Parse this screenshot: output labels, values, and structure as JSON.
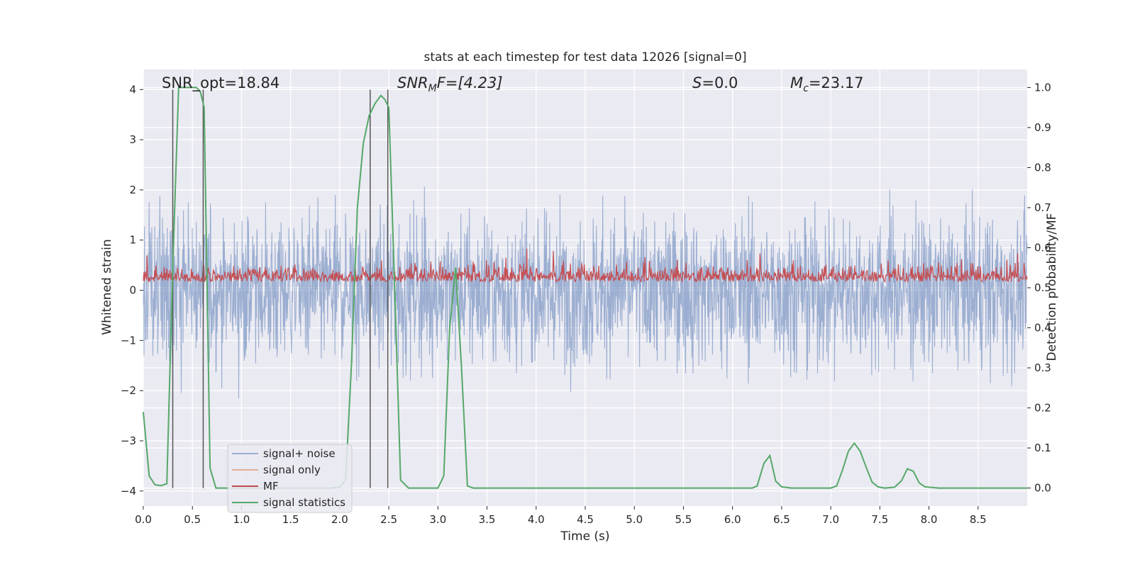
{
  "chart_data": {
    "type": "line",
    "title": "stats at each timestep for test data 12026 [signal=0]",
    "xlabel": "Time (s)",
    "ylabel_left": "Whitened strain",
    "ylabel_right": "Detection probability/MF",
    "xlim": [
      0,
      9.0
    ],
    "ylim_left": [
      -4.3,
      4.4
    ],
    "ylim_right": [
      -0.045,
      1.045
    ],
    "x_ticks": [
      0.0,
      0.5,
      1.0,
      1.5,
      2.0,
      2.5,
      3.0,
      3.5,
      4.0,
      4.5,
      5.0,
      5.5,
      6.0,
      6.5,
      7.0,
      7.5,
      8.0,
      8.5
    ],
    "x_tick_labels": [
      "0.0",
      "0.5",
      "1.0",
      "1.5",
      "2.0",
      "2.5",
      "3.0",
      "3.5",
      "4.0",
      "4.5",
      "5.0",
      "5.5",
      "6.0",
      "6.5",
      "7.0",
      "7.5",
      "8.0",
      "8.5"
    ],
    "y_left_ticks": [
      4,
      3,
      2,
      1,
      0,
      -1,
      -2,
      -3,
      -4
    ],
    "y_left_tick_labels": [
      "4",
      "3",
      "2",
      "1",
      "0",
      "−1",
      "−2",
      "−3",
      "−4"
    ],
    "y_right_ticks": [
      1.0,
      0.9,
      0.8,
      0.7,
      0.6,
      0.5,
      0.4,
      0.3,
      0.2,
      0.1,
      0.0
    ],
    "y_right_tick_labels": [
      "1.0",
      "0.9",
      "0.8",
      "0.7",
      "0.6",
      "0.5",
      "0.4",
      "0.3",
      "0.2",
      "0.1",
      "0.0"
    ],
    "annotations": {
      "snr_opt": "SNR_opt=18.84",
      "snr_mf_sym": "SNR",
      "snr_mf_sub": "M",
      "snr_mf_tail": "F=[4.23]",
      "s_sym": "S",
      "s_tail": "=0.0",
      "mc_sym": "M",
      "mc_sub": "c",
      "mc_tail": "=23.17"
    },
    "vertical_markers": [
      0.3,
      0.61,
      2.31,
      2.49
    ],
    "legend": {
      "location": "lower-left",
      "entries": [
        "signal+ noise",
        "signal only",
        "MF",
        "signal statistics"
      ]
    },
    "series": [
      {
        "name": "signal statistics",
        "axis": "right",
        "color": "#55a868",
        "x": [
          0.0,
          0.06,
          0.12,
          0.18,
          0.24,
          0.3,
          0.36,
          0.42,
          0.48,
          0.54,
          0.58,
          0.62,
          0.68,
          0.74,
          0.8,
          1.0,
          1.5,
          1.9,
          2.0,
          2.06,
          2.12,
          2.18,
          2.24,
          2.3,
          2.36,
          2.42,
          2.46,
          2.5,
          2.56,
          2.62,
          2.7,
          2.8,
          3.0,
          3.06,
          3.12,
          3.18,
          3.24,
          3.3,
          3.36,
          3.45,
          4.0,
          5.0,
          6.0,
          6.2,
          6.25,
          6.32,
          6.38,
          6.44,
          6.5,
          6.6,
          7.0,
          7.06,
          7.12,
          7.18,
          7.24,
          7.3,
          7.36,
          7.42,
          7.48,
          7.55,
          7.65,
          7.72,
          7.78,
          7.84,
          7.9,
          7.96,
          8.1,
          9.0
        ],
        "values": [
          0.19,
          0.03,
          0.008,
          0.006,
          0.011,
          0.55,
          1.0,
          1.0,
          1.0,
          1.0,
          0.99,
          0.95,
          0.05,
          0.0,
          0.0,
          0.0,
          0.0,
          0.0,
          0.002,
          0.02,
          0.31,
          0.7,
          0.86,
          0.93,
          0.96,
          0.98,
          0.97,
          0.95,
          0.5,
          0.02,
          0.0,
          0.0,
          0.0,
          0.03,
          0.4,
          0.55,
          0.3,
          0.005,
          0.0,
          0.0,
          0.0,
          0.0,
          0.0,
          0.0,
          0.005,
          0.062,
          0.081,
          0.017,
          0.003,
          0.0,
          0.0,
          0.005,
          0.045,
          0.092,
          0.112,
          0.092,
          0.052,
          0.015,
          0.003,
          0.0,
          0.002,
          0.018,
          0.048,
          0.042,
          0.013,
          0.003,
          0.0,
          0.0
        ]
      }
    ]
  }
}
